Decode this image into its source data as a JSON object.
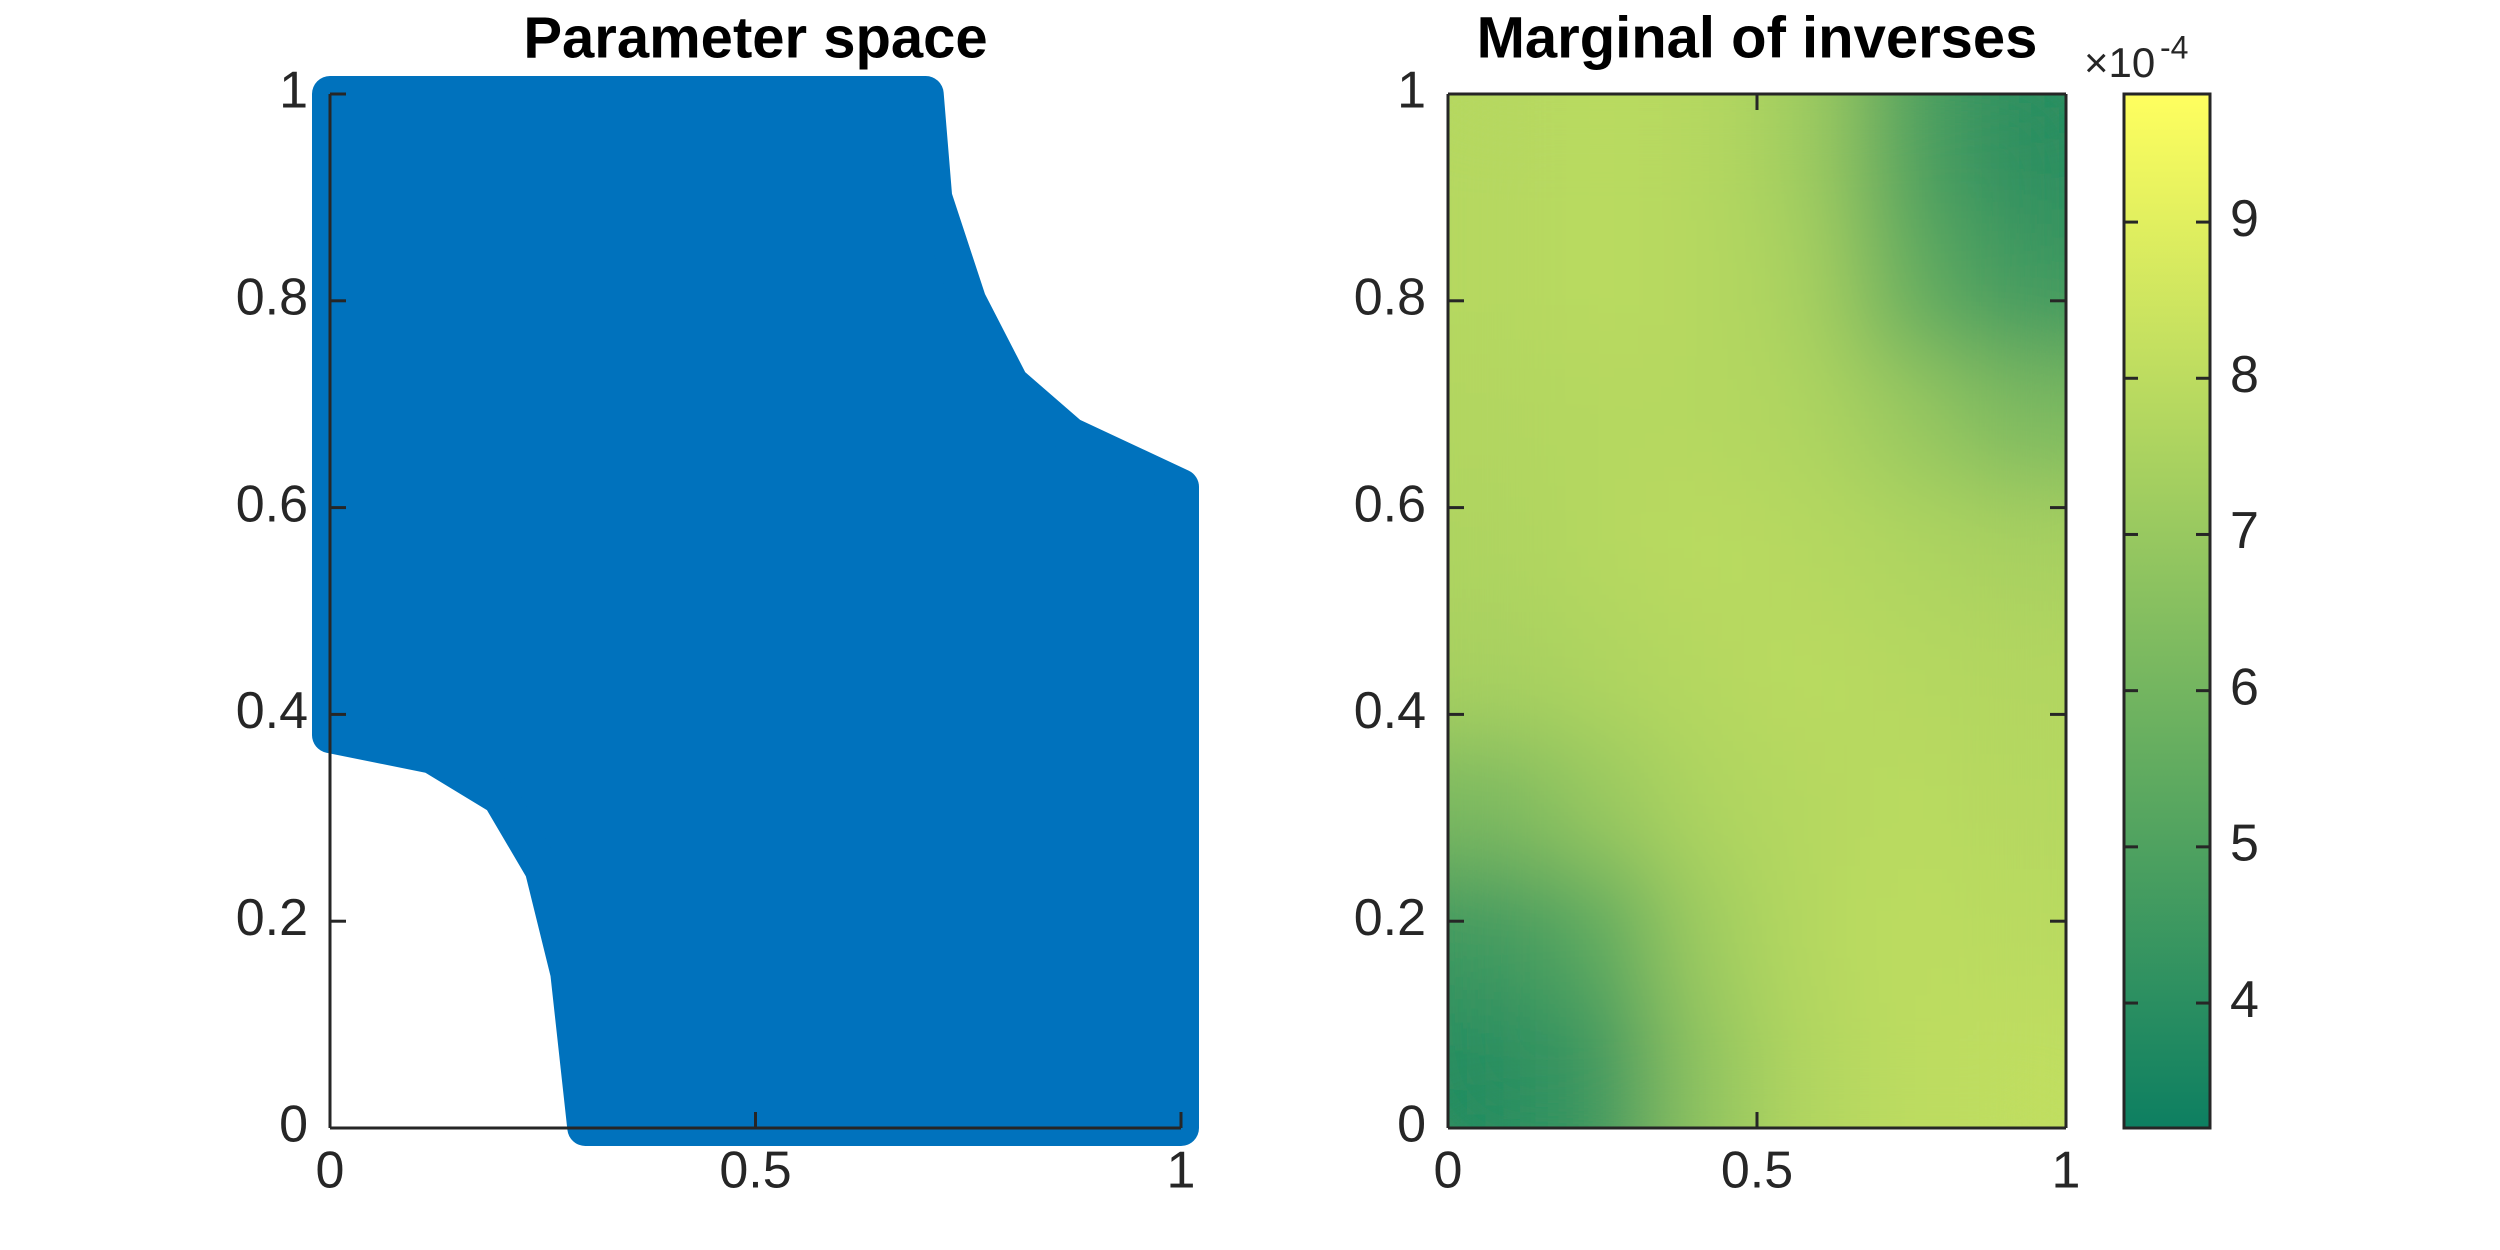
{
  "chart_data": [
    {
      "type": "area",
      "title": "Parameter space",
      "color": "#0072bd",
      "x": [
        0,
        0.7,
        0.71,
        0.75,
        0.8,
        0.87,
        1,
        1,
        0.3,
        0.28,
        0.25,
        0.2,
        0.12,
        0
      ],
      "y": [
        1,
        1,
        0.9,
        0.8,
        0.72,
        0.67,
        0.62,
        0,
        0,
        0.15,
        0.25,
        0.32,
        0.36,
        0.38
      ],
      "xlim": [
        0,
        1
      ],
      "ylim": [
        0,
        1
      ],
      "xticks": [
        0,
        0.5,
        1
      ],
      "yticks": [
        0,
        0.2,
        0.4,
        0.6,
        0.8,
        1
      ],
      "box": false
    },
    {
      "type": "heatmap",
      "title": "Marginal of inverses",
      "values": [
        [
          3.9,
          4.5,
          6.8,
          7.7,
          8.0,
          8.1
        ],
        [
          4.6,
          5.4,
          7.2,
          7.8,
          8.0,
          7.9
        ],
        [
          6.2,
          7.0,
          7.6,
          7.8,
          7.9,
          7.8
        ],
        [
          7.4,
          7.6,
          7.8,
          7.9,
          7.8,
          7.7
        ],
        [
          7.6,
          7.8,
          7.9,
          7.8,
          7.6,
          7.4
        ],
        [
          7.7,
          7.8,
          7.8,
          7.6,
          7.0,
          6.2
        ],
        [
          7.8,
          7.9,
          7.8,
          7.4,
          5.6,
          4.6
        ],
        [
          7.8,
          7.9,
          7.8,
          7.2,
          5.0,
          4.0
        ]
      ],
      "xlim": [
        0,
        1
      ],
      "ylim": [
        0,
        1
      ],
      "xticks": [
        0,
        0.5,
        1
      ],
      "yticks": [
        0,
        0.2,
        0.4,
        0.6,
        0.8,
        1
      ],
      "box": true,
      "colormap": [
        "#0d7f61",
        "#ffff5f"
      ],
      "clim": [
        3.2,
        9.82
      ],
      "cticks": [
        4,
        5,
        6,
        7,
        8,
        9
      ],
      "colorbar_multiplier": "×10",
      "colorbar_exponent": "-4"
    }
  ]
}
